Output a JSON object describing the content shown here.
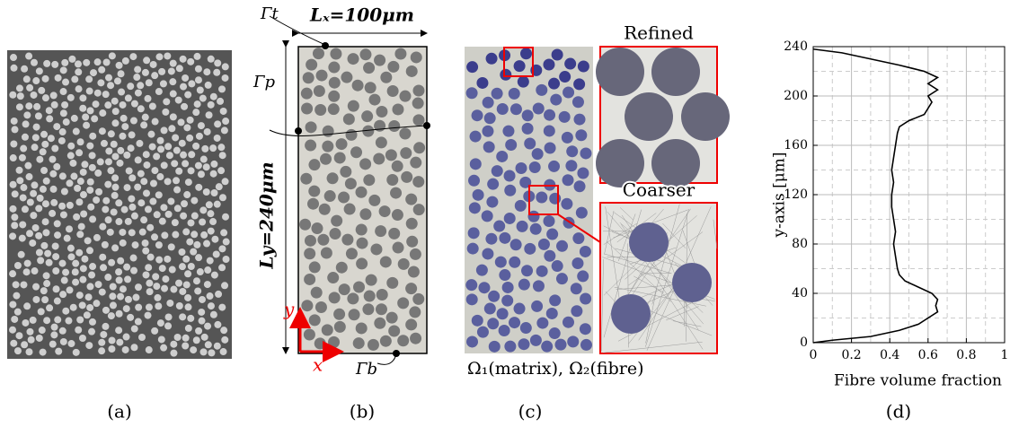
{
  "panels": {
    "a": {
      "label": "(a)"
    },
    "b": {
      "label": "(b)",
      "gamma_t": "Γt",
      "lx": "Lₓ=100μm",
      "gamma_p": "Γp",
      "ly": "Ly=240μm",
      "y_axis": "y",
      "x_axis": "x",
      "gamma_b": "Γb"
    },
    "c": {
      "label": "(c)",
      "refined": "Refined",
      "coarser": "Coarser",
      "caption": "Ω₁(matrix), Ω₂(fibre)"
    },
    "d": {
      "label": "(d)"
    }
  },
  "chart_data": {
    "type": "line",
    "x_label": "Fibre volume fraction",
    "y_label": "y-axis [μm]",
    "x": [
      0,
      0.1,
      0.3,
      0.45,
      0.55,
      0.6,
      0.65,
      0.64,
      0.65,
      0.62,
      0.55,
      0.48,
      0.45,
      0.44,
      0.43,
      0.42,
      0.43,
      0.42,
      0.41,
      0.41,
      0.42,
      0.41,
      0.42,
      0.43,
      0.44,
      0.45,
      0.5,
      0.58,
      0.6,
      0.62,
      0.6,
      0.65,
      0.6,
      0.65,
      0.58,
      0.45,
      0.3,
      0.15,
      0
    ],
    "series": [
      {
        "color": "#000000",
        "values": [
          0,
          2,
          5,
          10,
          15,
          20,
          25,
          30,
          35,
          40,
          45,
          50,
          55,
          60,
          70,
          80,
          90,
          100,
          110,
          120,
          130,
          140,
          150,
          160,
          170,
          175,
          180,
          185,
          190,
          195,
          200,
          205,
          210,
          215,
          220,
          225,
          230,
          235,
          238
        ]
      }
    ],
    "xlim": [
      0,
      1
    ],
    "xticks": [
      0,
      0.2,
      0.4,
      0.6,
      0.8,
      1
    ],
    "ylim": [
      0,
      240
    ],
    "yticks": [
      0,
      40,
      80,
      120,
      160,
      200,
      240
    ],
    "grid": true
  }
}
